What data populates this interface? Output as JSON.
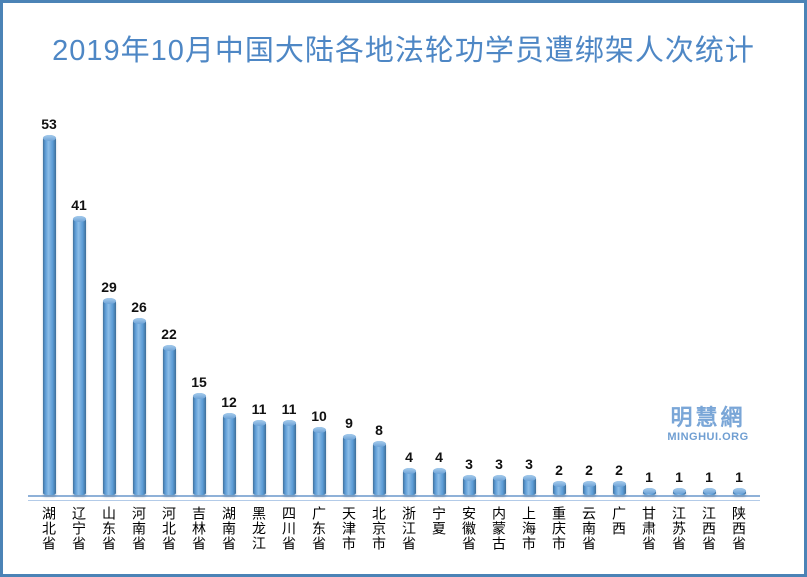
{
  "window": {
    "background": "#ffffff",
    "frame_border_color": "#4b83b6"
  },
  "title": "2019年10月中国大陆各地法轮功学员遭绑架人次统计",
  "watermark": {
    "name": "明慧網",
    "site": "MINGHUI.ORG"
  },
  "colors": {
    "title_text": "#4e87c5",
    "bar_fill": "#5b9bd5",
    "bar_edge": "#41719c",
    "axis_line": "#8fb1d8",
    "value_label_text": "#111111",
    "category_label_text": "#000000",
    "watermark_text": "#7aa6d7"
  },
  "chart_data": {
    "type": "bar",
    "title": "2019年10月中国大陆各地法轮功学员遭绑架人次统计",
    "categories": [
      "湖北省",
      "辽宁省",
      "山东省",
      "河南省",
      "河北省",
      "吉林省",
      "湖南省",
      "黑龙江",
      "四川省",
      "广东省",
      "天津市",
      "北京市",
      "浙江省",
      "宁夏",
      "安徽省",
      "内蒙古",
      "上海市",
      "重庆市",
      "云南省",
      "广西",
      "甘肃省",
      "江苏省",
      "江西省",
      "陕西省"
    ],
    "values": [
      53,
      41,
      29,
      26,
      22,
      15,
      12,
      11,
      11,
      10,
      9,
      8,
      4,
      4,
      3,
      3,
      3,
      2,
      2,
      2,
      1,
      1,
      1,
      1
    ],
    "xlabel": "",
    "ylabel": "",
    "ylim": [
      0,
      56
    ],
    "grid": false,
    "legend": null,
    "value_labels_shown": true,
    "bar_style": "3d-cylinder"
  }
}
